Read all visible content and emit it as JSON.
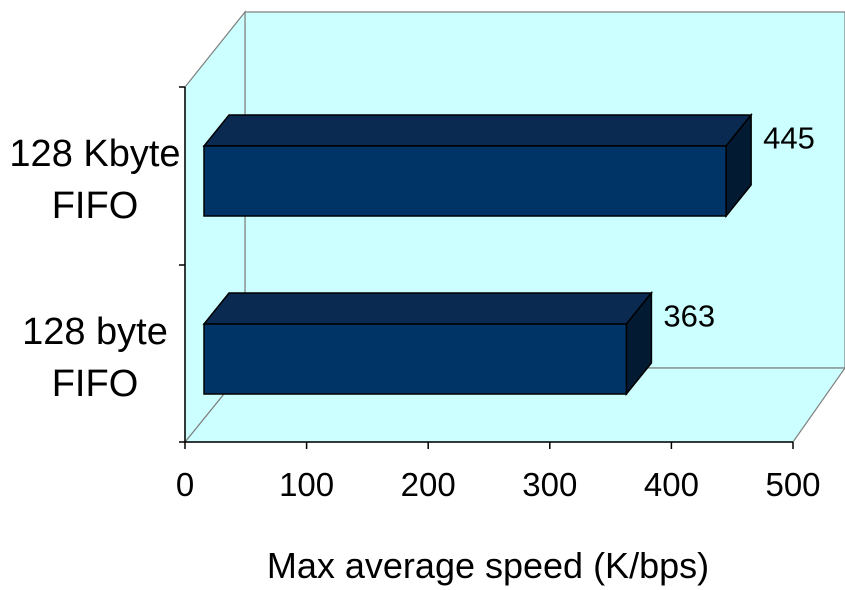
{
  "chart_data": {
    "type": "bar",
    "orientation": "horizontal",
    "style": "3d",
    "categories": [
      [
        "128 Kbyte",
        "FIFO"
      ],
      [
        "128 byte",
        "FIFO"
      ]
    ],
    "values": [
      445,
      363
    ],
    "data_labels": [
      "445",
      "363"
    ],
    "xlabel": "Max average speed (K/bps)",
    "xlim": [
      0,
      500
    ],
    "xticks": [
      "0",
      "100",
      "200",
      "300",
      "400",
      "500"
    ],
    "grid": false,
    "legend": "none",
    "colors": {
      "bar_front": "#003366",
      "bar_top": "#0a2a52",
      "bar_side": "#031a33",
      "wall": "#ccffff",
      "outline": "#000000"
    }
  }
}
